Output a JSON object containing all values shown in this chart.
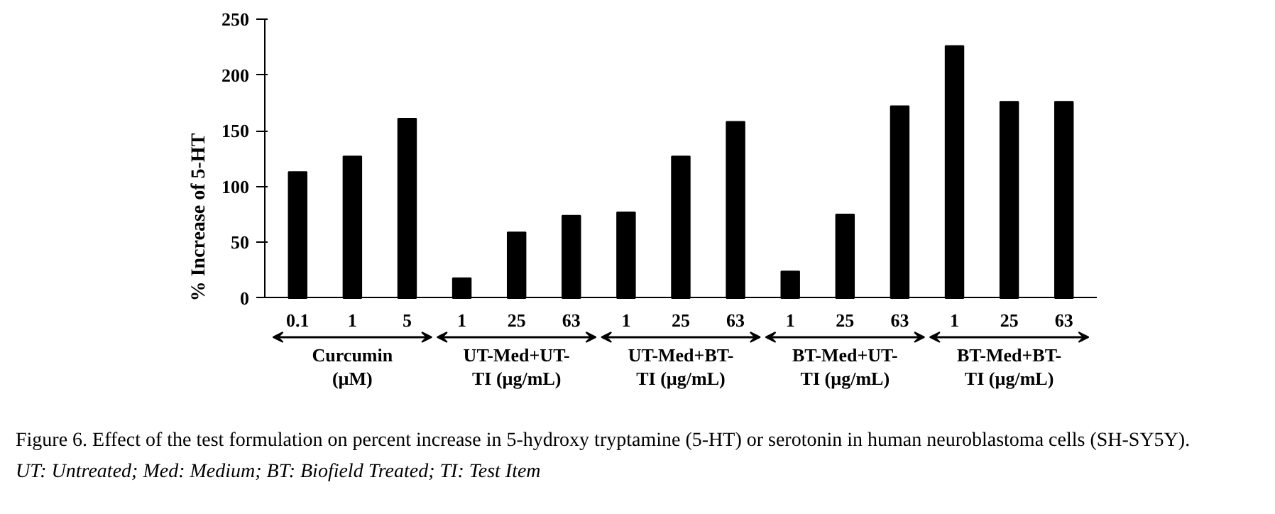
{
  "chart_data": {
    "type": "bar",
    "ylabel": "% Increase of 5-HT",
    "categories": [
      "0.1",
      "1",
      "5",
      "1",
      "25",
      "63",
      "1",
      "25",
      "63",
      "1",
      "25",
      "63",
      "1",
      "25",
      "63"
    ],
    "values": [
      113,
      127,
      161,
      18,
      59,
      74,
      77,
      127,
      158,
      24,
      75,
      172,
      226,
      176,
      176
    ],
    "color": "#000000",
    "ylim": [
      0,
      250
    ],
    "yticks": [
      0,
      50,
      100,
      150,
      200,
      250
    ],
    "grid": false,
    "annotations": [
      "Curcumin\n(µM)",
      "UT-Med+UT-\nTI (µg/mL)",
      "UT-Med+BT-\nTI (µg/mL)",
      "BT-Med+UT-\nTI (µg/mL)",
      "BT-Med+BT-\nTI (µg/mL)",
      "Figure 6. Effect of the test formulation on percent increase in 5-hydroxy tryptamine (5-HT) or serotonin in human neuroblastoma cells (SH-SY5Y).",
      "UT: Untreated; Med: Medium; BT: Biofield Treated; TI: Test Item"
    ]
  }
}
